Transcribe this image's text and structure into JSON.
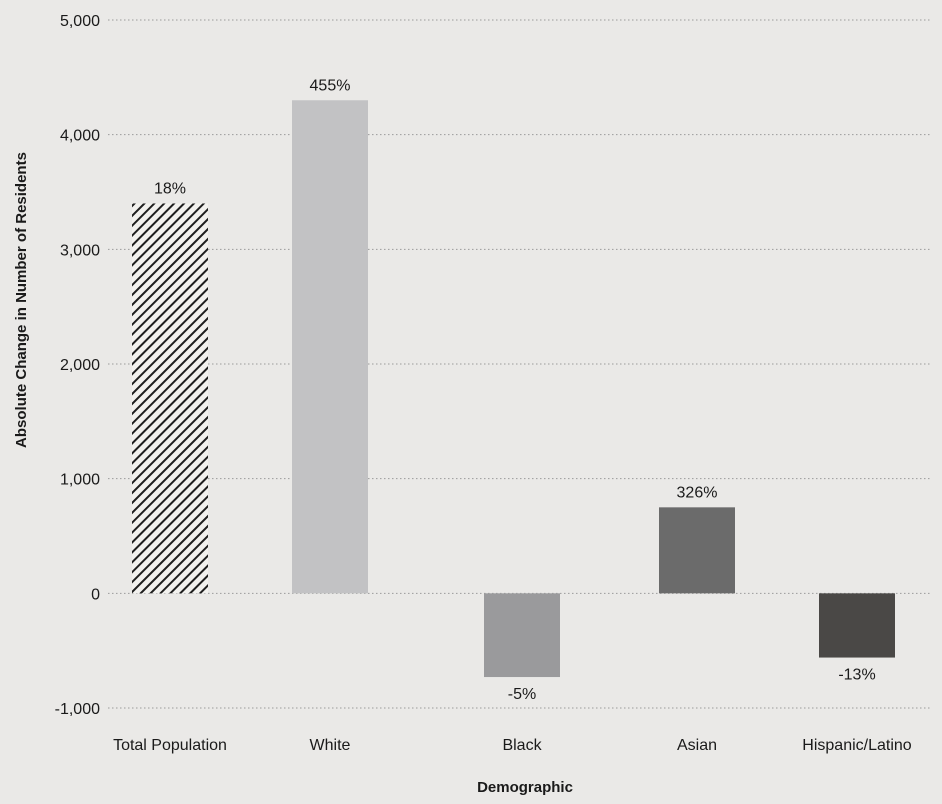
{
  "chart_data": {
    "type": "bar",
    "categories": [
      "Total Population",
      "White",
      "Black",
      "Asian",
      "Hispanic/Latino"
    ],
    "values": [
      3400,
      4300,
      -730,
      750,
      -560
    ],
    "data_labels": [
      "18%",
      "455%",
      "-5%",
      "326%",
      "-13%"
    ],
    "xlabel": "Demographic",
    "ylabel": "Absolute Change in Number of Residents",
    "ylim": [
      -1000,
      5000
    ],
    "yticks": [
      -1000,
      0,
      1000,
      2000,
      3000,
      4000,
      5000
    ],
    "ytick_labels": [
      "-1,000",
      "0",
      "1,000",
      "2,000",
      "3,000",
      "4,000",
      "5,000"
    ],
    "grid": true,
    "colors": [
      "#2a2a2a",
      "#c2c2c4",
      "#9a9a9c",
      "#6b6b6b",
      "#4a4846"
    ],
    "patterns": [
      "diagonal-hatch",
      "solid",
      "solid",
      "solid",
      "solid"
    ]
  }
}
